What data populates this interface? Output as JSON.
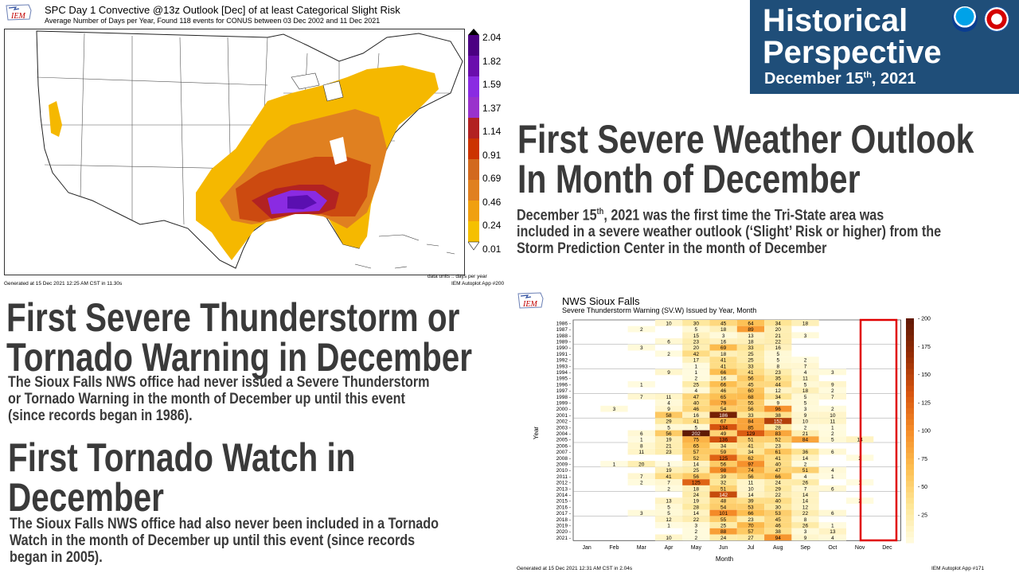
{
  "header": {
    "line1": "Historical",
    "line2": "Perspective",
    "date_main": "December 15",
    "date_sup": "th",
    "date_year": ", 2021",
    "logo1": "noaa-logo",
    "logo2": "nws-logo",
    "bg_color": "#1f4e79"
  },
  "map_figure": {
    "logo_text": "IEM",
    "title": "SPC Day 1 Convective @13z Outlook [Dec] of at least Categorical Slight Risk",
    "subtitle": "Average Number of Days per Year, Found 118 events for CONUS between 03 Dec 2002 and 11 Dec 2021",
    "units": "data units :: days per year",
    "app": "IEM Autoplot App #200",
    "generated": "Generated at 15 Dec 2021 12:25 AM CST in 11.30s",
    "colorbar_ticks": [
      "2.04",
      "1.82",
      "1.59",
      "1.37",
      "1.14",
      "0.91",
      "0.69",
      "0.46",
      "0.24",
      "0.01"
    ],
    "colorbar_colors": [
      "#4b0082",
      "#6a0dad",
      "#8a2be2",
      "#9932cc",
      "#b22222",
      "#cc3300",
      "#d2691e",
      "#e08020",
      "#f0a010",
      "#f5c000"
    ]
  },
  "section1": {
    "title_line1": "First Severe Weather Outlook",
    "title_line2": "In Month of December",
    "body_pre": "December 15",
    "body_sup": "th",
    "body_line1_rest": ", 2021 was the first time the Tri-State area was",
    "body_line2": "included in a severe weather outlook (‘Slight’ Risk or higher) from the",
    "body_line3": "Storm Prediction Center in the month of December"
  },
  "section2": {
    "title_line1": "First Severe Thunderstorm or",
    "title_line2": "Tornado Warning in December",
    "body_line1": "The Sioux Falls NWS office had never issued a Severe Thunderstorm",
    "body_line2": "or Tornado Warning in the month of December up until this event",
    "body_line3": "(since records began in 1986)."
  },
  "section3": {
    "title_line1": "First Tornado Watch in",
    "title_line2": "December",
    "body_line1": "The Sioux Falls NWS office had also never been included in a Tornado",
    "body_line2": "Watch in the month of December up until this event (since records",
    "body_line3": "began in 2005)."
  },
  "heatmap_figure": {
    "logo_text": "IEM",
    "title": "NWS Sioux Falls",
    "subtitle": "Severe Thunderstorm Warning (SV.W) Issued by Year, Month",
    "generated": "Generated at 15 Dec 2021 12:31 AM CST in 2.04s",
    "app": "IEM Autoplot App #171",
    "highlight_color": "#e00000"
  },
  "chart_data": {
    "type": "heatmap",
    "xlabel": "Month",
    "ylabel": "Year",
    "x": [
      "Jan",
      "Feb",
      "Mar",
      "Apr",
      "May",
      "Jun",
      "Jul",
      "Aug",
      "Sep",
      "Oct",
      "Nov",
      "Dec"
    ],
    "y": [
      "1986",
      "1987",
      "1988",
      "1989",
      "1990",
      "1991",
      "1992",
      "1993",
      "1994",
      "1995",
      "1996",
      "1997",
      "1998",
      "1999",
      "2000",
      "2001",
      "2002",
      "2003",
      "2004",
      "2005",
      "2006",
      "2007",
      "2008",
      "2009",
      "2010",
      "2011",
      "2012",
      "2013",
      "2014",
      "2015",
      "2016",
      "2017",
      "2018",
      "2019",
      "2020",
      "2021"
    ],
    "values": [
      [
        null,
        null,
        null,
        10,
        30,
        45,
        64,
        34,
        18,
        null,
        null,
        null
      ],
      [
        null,
        null,
        2,
        null,
        5,
        18,
        89,
        20,
        null,
        null,
        null,
        null
      ],
      [
        null,
        null,
        null,
        null,
        15,
        3,
        13,
        21,
        3,
        null,
        null,
        null
      ],
      [
        null,
        null,
        null,
        6,
        23,
        16,
        18,
        22,
        null,
        null,
        null,
        null
      ],
      [
        null,
        null,
        3,
        null,
        20,
        69,
        33,
        16,
        null,
        null,
        null,
        null
      ],
      [
        null,
        null,
        null,
        2,
        42,
        18,
        25,
        5,
        null,
        null,
        null,
        null
      ],
      [
        null,
        null,
        null,
        null,
        17,
        41,
        25,
        5,
        2,
        null,
        null,
        null
      ],
      [
        null,
        null,
        null,
        null,
        1,
        41,
        33,
        8,
        7,
        null,
        null,
        null
      ],
      [
        null,
        null,
        null,
        9,
        1,
        66,
        41,
        23,
        4,
        3,
        null,
        null
      ],
      [
        null,
        null,
        null,
        null,
        2,
        16,
        56,
        35,
        11,
        null,
        null,
        null
      ],
      [
        null,
        null,
        1,
        null,
        25,
        66,
        45,
        44,
        5,
        9,
        null,
        null
      ],
      [
        null,
        null,
        null,
        null,
        4,
        46,
        60,
        12,
        18,
        2,
        null,
        null
      ],
      [
        null,
        null,
        7,
        11,
        47,
        65,
        68,
        34,
        5,
        7,
        null,
        null
      ],
      [
        null,
        null,
        null,
        4,
        40,
        79,
        55,
        9,
        5,
        null,
        null,
        null
      ],
      [
        null,
        3,
        null,
        9,
        46,
        54,
        56,
        96,
        3,
        2,
        null,
        null
      ],
      [
        null,
        null,
        null,
        58,
        16,
        186,
        33,
        38,
        9,
        10,
        null,
        null
      ],
      [
        null,
        null,
        null,
        29,
        41,
        67,
        84,
        152,
        10,
        11,
        null,
        null
      ],
      [
        null,
        null,
        null,
        5,
        5,
        134,
        85,
        28,
        2,
        1,
        null,
        null
      ],
      [
        null,
        null,
        6,
        56,
        202,
        49,
        129,
        83,
        21,
        2,
        null,
        null
      ],
      [
        null,
        null,
        1,
        19,
        75,
        136,
        51,
        52,
        84,
        5,
        14,
        null
      ],
      [
        null,
        null,
        8,
        21,
        65,
        34,
        41,
        23,
        null,
        null,
        null,
        null
      ],
      [
        null,
        null,
        11,
        23,
        57,
        59,
        34,
        61,
        36,
        6,
        null,
        null
      ],
      [
        null,
        null,
        null,
        null,
        52,
        125,
        62,
        41,
        14,
        null,
        2,
        null
      ],
      [
        null,
        1,
        20,
        1,
        14,
        56,
        97,
        40,
        2,
        null,
        null,
        null
      ],
      [
        null,
        null,
        null,
        19,
        25,
        98,
        74,
        47,
        51,
        4,
        null,
        null
      ],
      [
        null,
        null,
        7,
        41,
        56,
        39,
        56,
        66,
        4,
        1,
        null,
        null
      ],
      [
        null,
        null,
        2,
        7,
        125,
        32,
        11,
        24,
        26,
        null,
        1,
        null
      ],
      [
        null,
        null,
        null,
        2,
        18,
        51,
        10,
        29,
        7,
        6,
        null,
        null
      ],
      [
        null,
        null,
        null,
        null,
        24,
        142,
        14,
        22,
        14,
        null,
        null,
        null
      ],
      [
        null,
        null,
        null,
        13,
        19,
        48,
        39,
        40,
        14,
        null,
        2,
        null
      ],
      [
        null,
        null,
        null,
        5,
        28,
        54,
        53,
        30,
        12,
        null,
        null,
        null
      ],
      [
        null,
        null,
        3,
        5,
        14,
        101,
        66,
        53,
        22,
        6,
        null,
        null
      ],
      [
        null,
        null,
        null,
        12,
        22,
        55,
        23,
        45,
        8,
        null,
        null,
        null
      ],
      [
        null,
        null,
        null,
        1,
        3,
        25,
        70,
        46,
        26,
        1,
        null,
        null
      ],
      [
        null,
        null,
        null,
        null,
        2,
        88,
        57,
        38,
        3,
        13,
        null,
        null
      ],
      [
        null,
        null,
        null,
        10,
        2,
        24,
        27,
        94,
        9,
        4,
        null,
        null
      ]
    ],
    "colorbar_ticks": [
      200,
      175,
      150,
      125,
      100,
      75,
      50,
      25
    ],
    "vmin": 0,
    "vmax": 200
  }
}
